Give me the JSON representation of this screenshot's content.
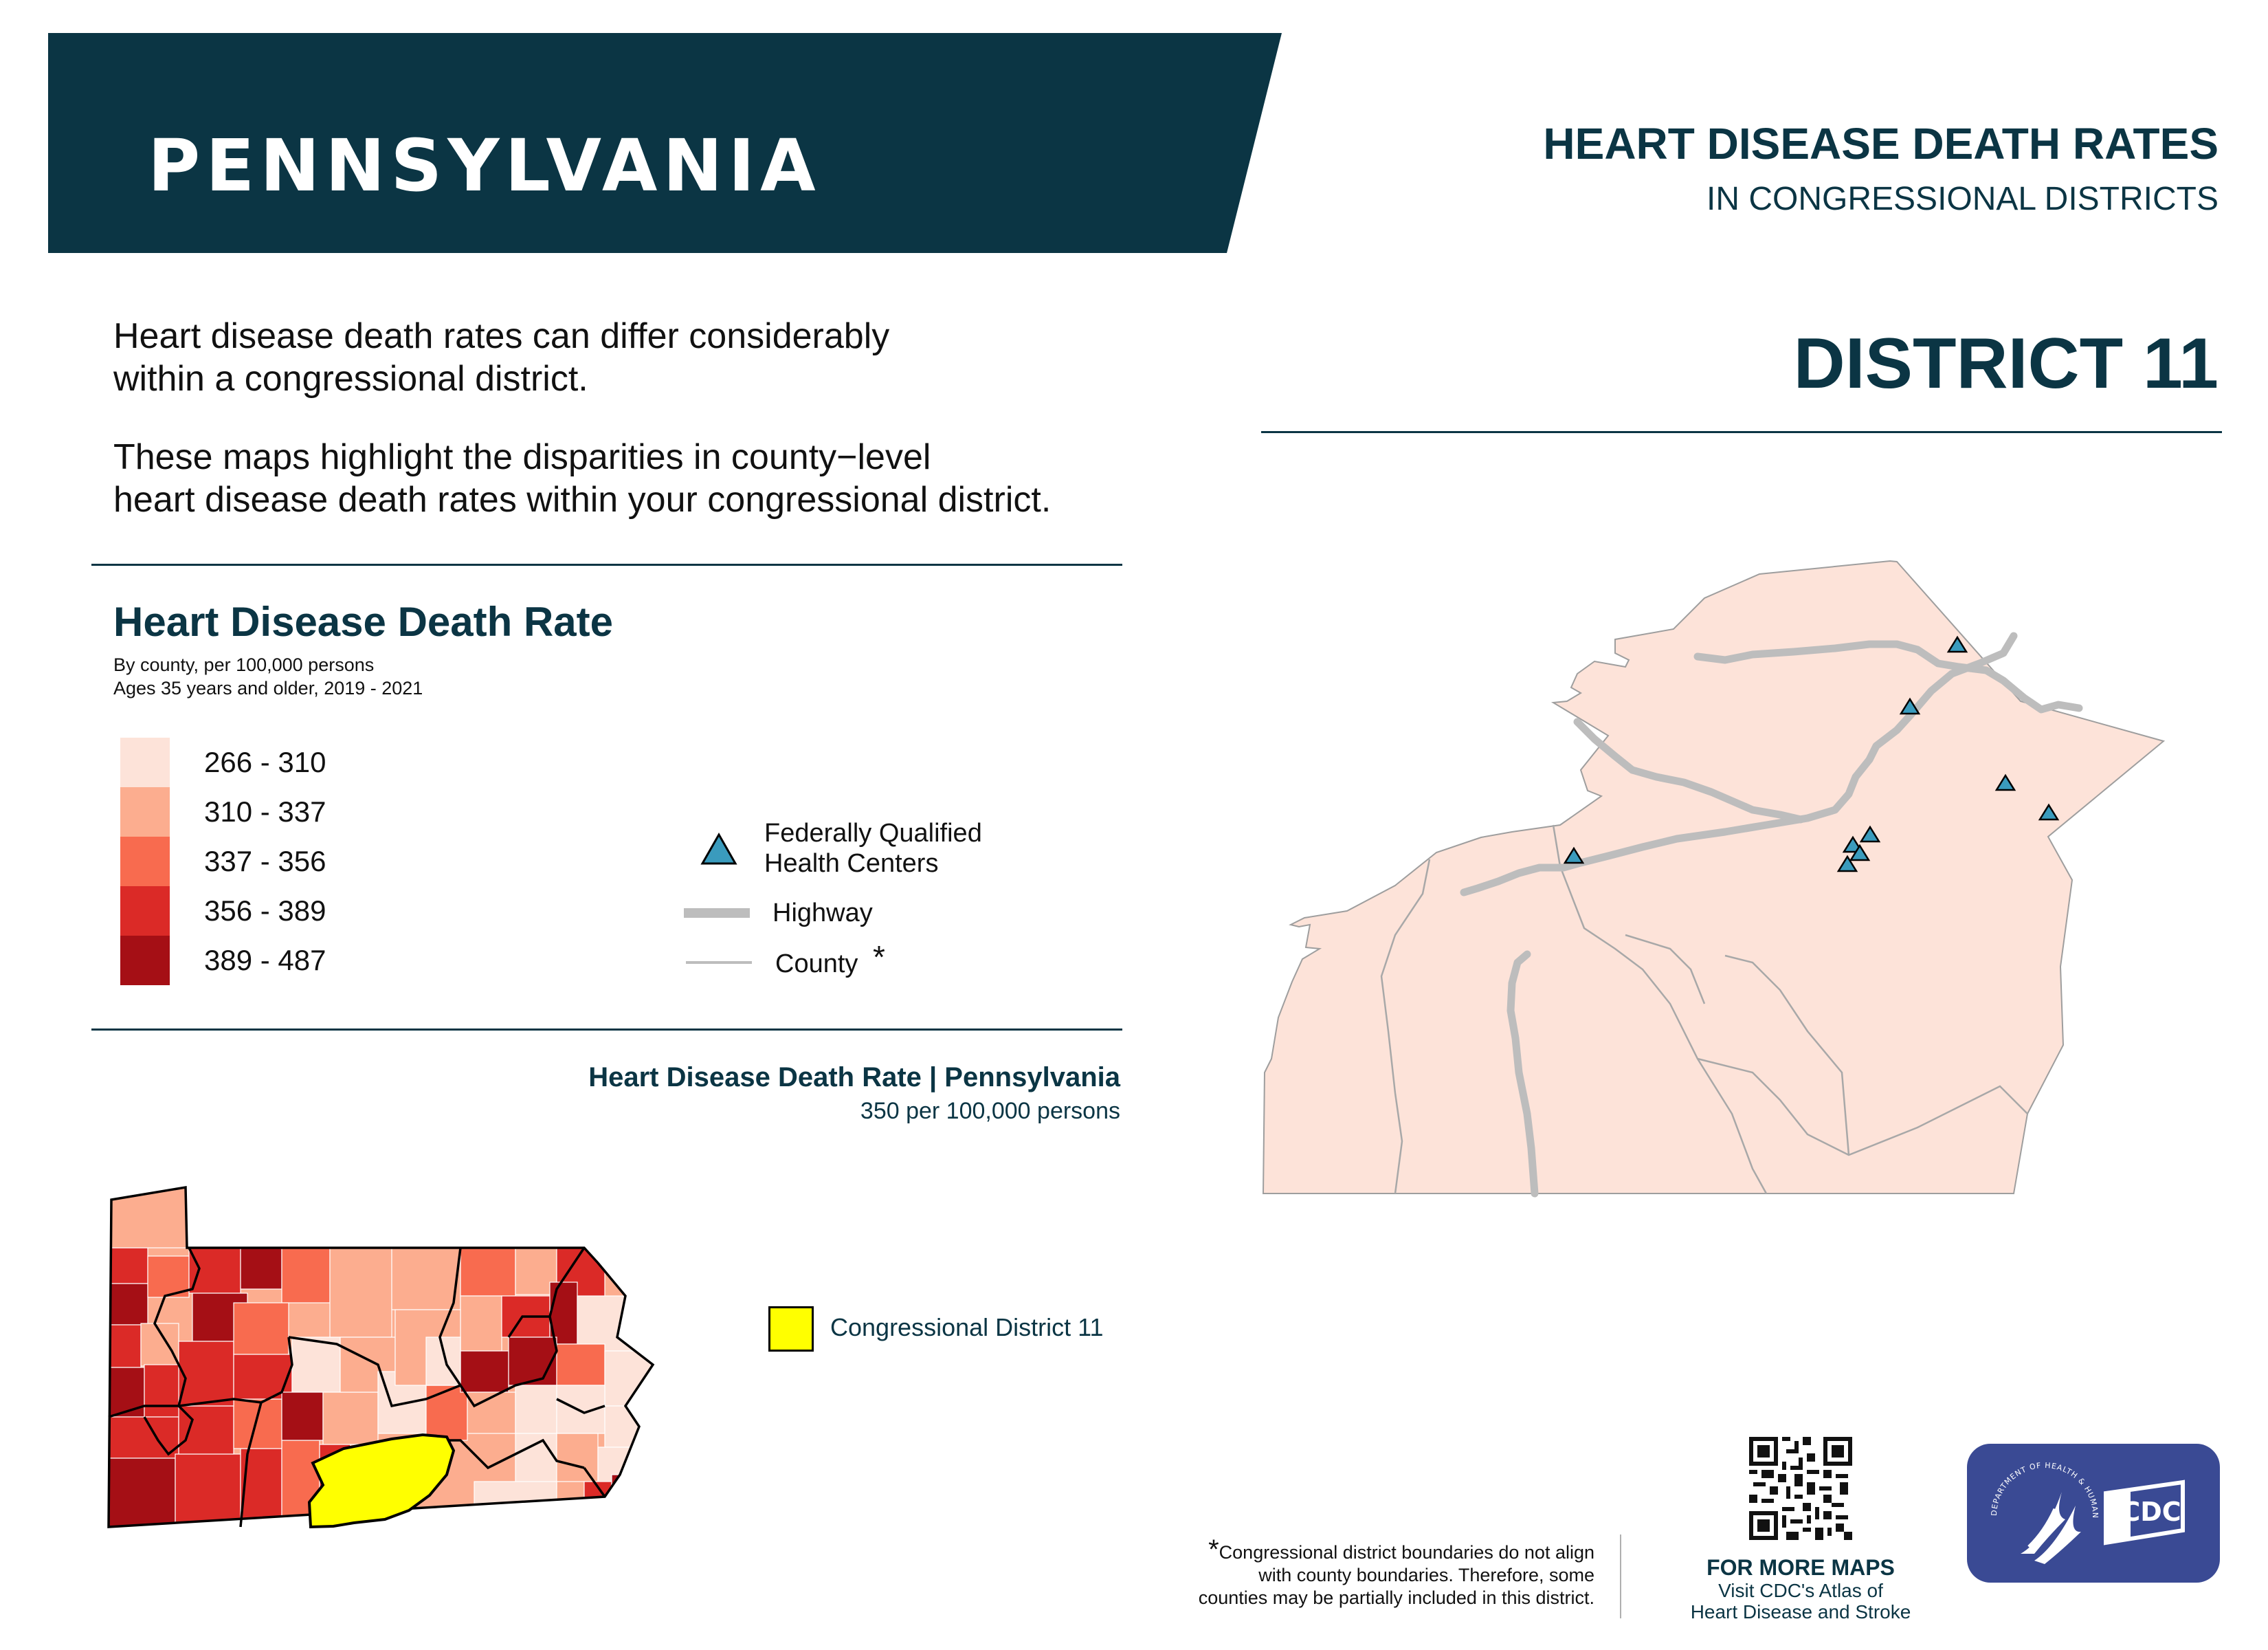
{
  "header": {
    "state": "PENNSYLVANIA",
    "title": "HEART DISEASE DEATH RATES",
    "subtitle": "IN CONGRESSIONAL DISTRICTS",
    "district_label": "DISTRICT  11"
  },
  "intro": {
    "paragraph1_line1": "Heart disease death rates can differ considerably",
    "paragraph1_line2": "within a congressional district.",
    "paragraph2_line1": "These maps highlight the disparities in county−level",
    "paragraph2_line2": "heart disease death rates within your congressional district."
  },
  "legend": {
    "title": "Heart Disease Death Rate",
    "subtitle1": "By county, per 100,000 persons",
    "subtitle2": "Ages 35 years and older, 2019 - 2021",
    "bins": [
      {
        "label": "266 - 310",
        "color": "#fde3d9"
      },
      {
        "label": "310 - 337",
        "color": "#fcad8f"
      },
      {
        "label": "337 - 356",
        "color": "#f86b4f"
      },
      {
        "label": "356 - 389",
        "color": "#db2a27"
      },
      {
        "label": "389 - 487",
        "color": "#a50f15"
      }
    ],
    "fqhc_line1": "Federally Qualified",
    "fqhc_line2": "Health Centers",
    "highway": "Highway",
    "county": "County",
    "county_asterisk": "*",
    "marker_color": "#3a9bbd",
    "highway_color": "#bdbdbd"
  },
  "state_map": {
    "title": "Heart Disease Death Rate | Pennsylvania",
    "rate": "350 per 100,000 persons",
    "district_key": "Congressional District 11",
    "district_color": "#ffff00"
  },
  "district_map": {
    "fill": "#fde3d9",
    "fqhc_count": 9
  },
  "footer": {
    "asterisk": "*",
    "note_line1": "Congressional district boundaries do not align",
    "note_line2": "with county boundaries. Therefore, some",
    "note_line3": "counties may be partially included in this district.",
    "more_title": "FOR MORE MAPS",
    "more_line1": "Visit CDC's Atlas of",
    "more_line2": "Heart Disease and Stroke",
    "cdc_logo_text": "CDC",
    "hhs_seal_text": "DEPARTMENT OF HEALTH & HUMAN SERVICES · USA"
  },
  "brand_color": "#0b3544"
}
